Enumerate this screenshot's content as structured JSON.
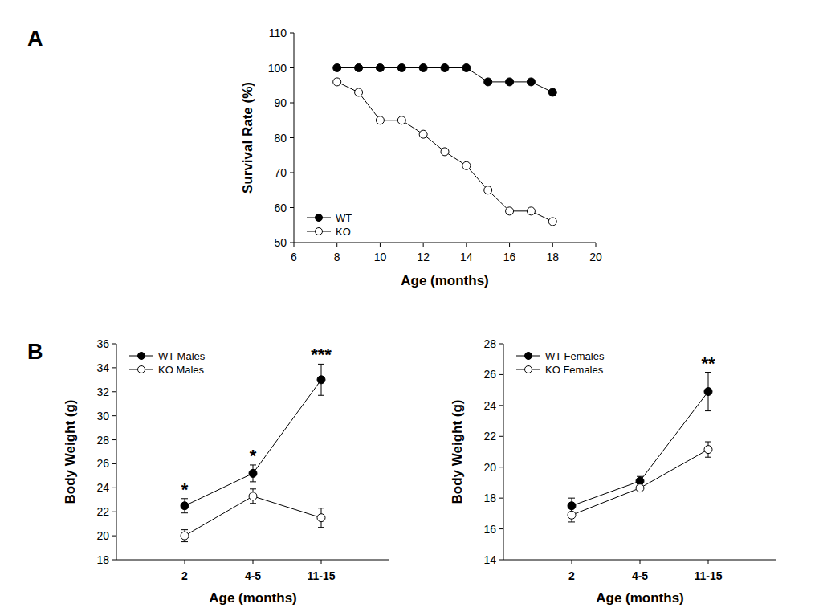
{
  "chart_data": [
    {
      "type": "line",
      "panel": "A",
      "x_label": "Age (months)",
      "y_label": "Survival Rate (%)",
      "x": [
        8,
        9,
        10,
        11,
        12,
        13,
        14,
        15,
        16,
        17,
        18
      ],
      "series": [
        {
          "name": "WT",
          "color": "#000000",
          "marker": "circle",
          "values": [
            100,
            100,
            100,
            100,
            100,
            100,
            100,
            96,
            96,
            96,
            93
          ]
        },
        {
          "name": "KO",
          "color": "#000000",
          "marker": "circle-open",
          "values": [
            96,
            93,
            85,
            85,
            81,
            76,
            72,
            65,
            59,
            59,
            56
          ]
        }
      ],
      "xlim": [
        6,
        20
      ],
      "xticks": [
        6,
        8,
        10,
        12,
        14,
        16,
        18,
        20
      ],
      "ylim": [
        50,
        110
      ],
      "yticks": [
        50,
        60,
        70,
        80,
        90,
        100,
        110
      ],
      "legend": "lower-left"
    },
    {
      "type": "line",
      "panel": "B",
      "x_label": "Age (months)",
      "y_label": "Body Weight (g)",
      "categories": [
        "2",
        "4-5",
        "11-15"
      ],
      "series": [
        {
          "name": "WT Males",
          "color": "#000000",
          "marker": "circle",
          "values": [
            22.5,
            25.2,
            33.0
          ],
          "errors": [
            0.6,
            0.7,
            1.3
          ]
        },
        {
          "name": "KO Males",
          "color": "#000000",
          "marker": "circle-open",
          "values": [
            20.0,
            23.3,
            21.5
          ],
          "errors": [
            0.5,
            0.6,
            0.8
          ]
        }
      ],
      "ylim": [
        18,
        36
      ],
      "yticks": [
        18,
        20,
        22,
        24,
        26,
        28,
        30,
        32,
        34,
        36
      ],
      "annotations": [
        {
          "text": "*",
          "category": "2"
        },
        {
          "text": "*",
          "category": "4-5"
        },
        {
          "text": "***",
          "category": "11-15"
        }
      ],
      "legend": "upper-left"
    },
    {
      "type": "line",
      "x_label": "Age (months)",
      "y_label": "Body Weight (g)",
      "categories": [
        "2",
        "4-5",
        "11-15"
      ],
      "series": [
        {
          "name": "WT Females",
          "color": "#000000",
          "marker": "circle",
          "values": [
            17.5,
            19.1,
            24.9
          ],
          "errors": [
            0.5,
            0.3,
            1.25
          ]
        },
        {
          "name": "KO Females",
          "color": "#000000",
          "marker": "circle-open",
          "values": [
            16.9,
            18.65,
            21.15
          ],
          "errors": [
            0.45,
            0.25,
            0.5
          ]
        }
      ],
      "ylim": [
        14,
        28
      ],
      "yticks": [
        14,
        16,
        18,
        20,
        22,
        24,
        26,
        28
      ],
      "annotations": [
        {
          "text": "**",
          "category": "11-15"
        }
      ],
      "legend": "upper-left"
    }
  ]
}
